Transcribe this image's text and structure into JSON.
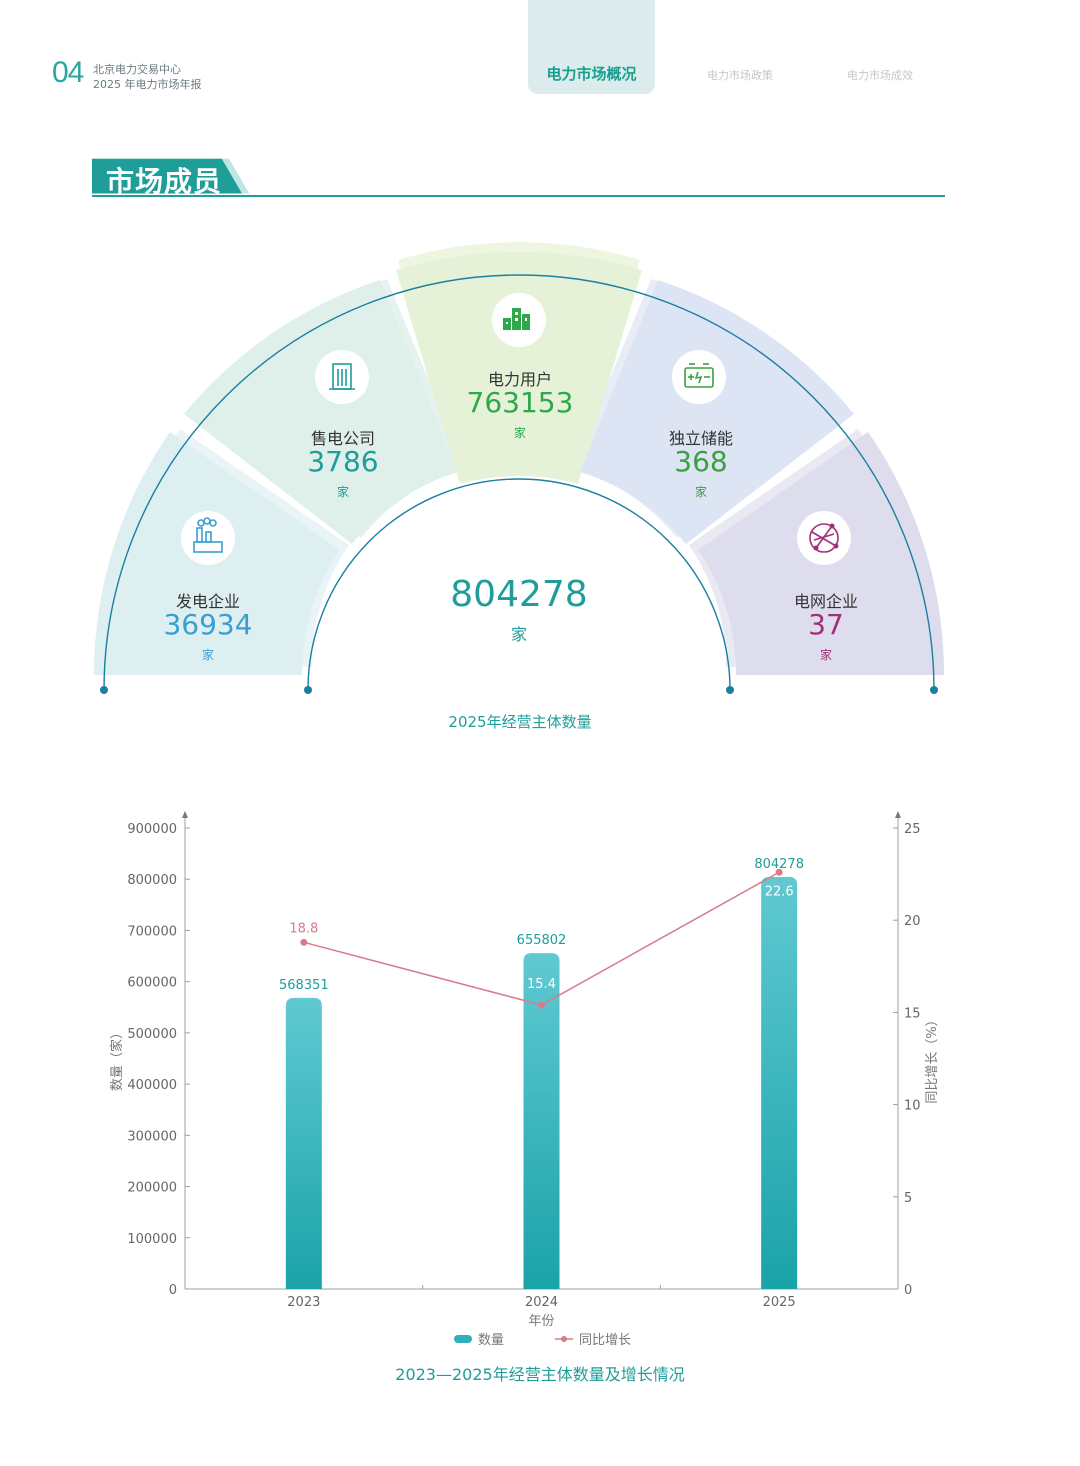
{
  "header": {
    "page_number": "04",
    "org_line1": "北京电力交易中心",
    "org_line2": "2025 年电力市场年报",
    "tabs": [
      {
        "label": "电力市场概况",
        "active": true
      },
      {
        "label": "电力市场政策",
        "active": false
      },
      {
        "label": "电力市场成效",
        "active": false
      }
    ]
  },
  "section": {
    "title": "市场成员"
  },
  "fan": {
    "total_value": "804278",
    "total_unit": "家",
    "caption": "2025年经营主体数量",
    "segments": [
      {
        "label": "发电企业",
        "value": "36934",
        "unit": "家",
        "icon": "power-plant-icon",
        "color": "#3a9fd0"
      },
      {
        "label": "售电公司",
        "value": "3786",
        "unit": "家",
        "icon": "office-building-icon",
        "color": "#1e9d99"
      },
      {
        "label": "电力用户",
        "value": "763153",
        "unit": "家",
        "icon": "city-buildings-icon",
        "color": "#2ea84a"
      },
      {
        "label": "独立储能",
        "value": "368",
        "unit": "家",
        "icon": "battery-icon",
        "color": "#3aa040"
      },
      {
        "label": "电网企业",
        "value": "37",
        "unit": "家",
        "icon": "globe-network-icon",
        "color": "#a0307a"
      }
    ]
  },
  "chart_data": {
    "type": "bar",
    "categories": [
      "2023",
      "2024",
      "2025"
    ],
    "series": [
      {
        "name": "数量",
        "type": "bar",
        "axis": "left",
        "values": [
          568351,
          655802,
          804278
        ],
        "color": "#2fb0b8"
      },
      {
        "name": "同比增长",
        "type": "line",
        "axis": "right",
        "values": [
          18.8,
          15.4,
          22.6
        ],
        "color": "#d87c8a"
      }
    ],
    "title": "",
    "xlabel": "年份",
    "ylabel": "数量（家）",
    "y2label": "同比增长（%）",
    "ylim": [
      0,
      900000
    ],
    "y2lim": [
      0,
      25
    ],
    "yticks": [
      "0",
      "100000",
      "200000",
      "300000",
      "400000",
      "500000",
      "600000",
      "700000",
      "800000",
      "900000"
    ],
    "y2ticks": [
      "0",
      "5",
      "10",
      "15",
      "20",
      "25"
    ],
    "bar_labels": [
      "568351",
      "655802",
      "804278"
    ],
    "line_labels": [
      "18.8",
      "15.4",
      "22.6"
    ],
    "legend_placement": "bottom-center",
    "grid": false
  },
  "chart_caption": "2023—2025年经营主体数量及增长情况"
}
